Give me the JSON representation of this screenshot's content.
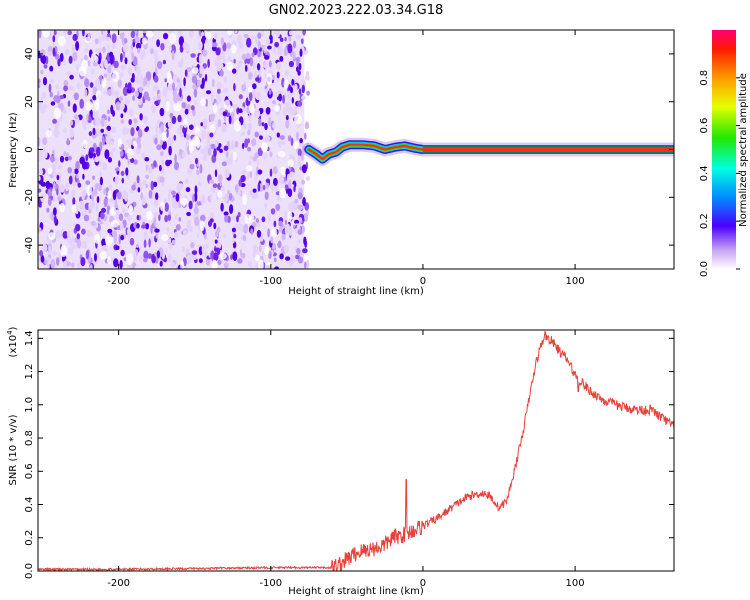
{
  "title": "GN02.2023.222.03.34.G18",
  "chart_data": [
    {
      "type": "heatmap",
      "xlabel": "Height of straight line (km)",
      "ylabel": "Frequency (Hz)",
      "xlim": [
        -253,
        165
      ],
      "ylim": [
        -50,
        50
      ],
      "xticks": [
        -200,
        -100,
        0,
        100
      ],
      "yticks": [
        -40,
        -20,
        0,
        20,
        40
      ],
      "noise_region_x": [
        -253,
        -78
      ],
      "signal_track": [
        {
          "x": -75,
          "y": 0
        },
        {
          "x": -70,
          "y": -2
        },
        {
          "x": -66,
          "y": -4
        },
        {
          "x": -62,
          "y": -2
        },
        {
          "x": -57,
          "y": -1
        },
        {
          "x": -53,
          "y": 1
        },
        {
          "x": -48,
          "y": 2
        },
        {
          "x": -40,
          "y": 2
        },
        {
          "x": -32,
          "y": 1.5
        },
        {
          "x": -25,
          "y": 0
        },
        {
          "x": -18,
          "y": 1
        },
        {
          "x": -12,
          "y": 1.5
        },
        {
          "x": -5,
          "y": 0.5
        },
        {
          "x": 0,
          "y": 0
        },
        {
          "x": 165,
          "y": 0
        }
      ],
      "colorbar": {
        "label": "Normalized spectral amplitude",
        "range": [
          0.0,
          1.0
        ],
        "ticks": [
          0.0,
          0.2,
          0.4,
          0.6,
          0.8
        ]
      }
    },
    {
      "type": "line",
      "xlabel": "Height of straight line (km)",
      "ylabel": "SNR (10 * v/v)",
      "multiplier": "(x10",
      "multiplier_exp": "4",
      "multiplier_close": ")",
      "xlim": [
        -253,
        165
      ],
      "ylim": [
        0.0,
        1.45
      ],
      "xticks": [
        -200,
        -100,
        0,
        100
      ],
      "yticks": [
        0.0,
        0.2,
        0.4,
        0.6,
        0.8,
        1.0,
        1.2,
        1.4
      ],
      "series": [
        {
          "color": "#e8403a",
          "x": [
            -253,
            -200,
            -150,
            -100,
            -80,
            -60,
            -55,
            -50,
            -45,
            -40,
            -35,
            -30,
            -25,
            -20,
            -15,
            -10,
            -5,
            0,
            10,
            20,
            30,
            40,
            45,
            50,
            55,
            60,
            65,
            70,
            75,
            80,
            85,
            90,
            95,
            100,
            110,
            120,
            130,
            140,
            150,
            160,
            165
          ],
          "y": [
            0.01,
            0.01,
            0.015,
            0.02,
            0.02,
            0.02,
            0.04,
            0.07,
            0.1,
            0.12,
            0.13,
            0.14,
            0.16,
            0.2,
            0.21,
            0.23,
            0.25,
            0.27,
            0.32,
            0.39,
            0.45,
            0.47,
            0.44,
            0.38,
            0.42,
            0.6,
            0.8,
            1.05,
            1.28,
            1.42,
            1.38,
            1.32,
            1.27,
            1.18,
            1.08,
            1.02,
            0.99,
            0.97,
            0.97,
            0.9,
            0.87
          ]
        }
      ]
    }
  ]
}
